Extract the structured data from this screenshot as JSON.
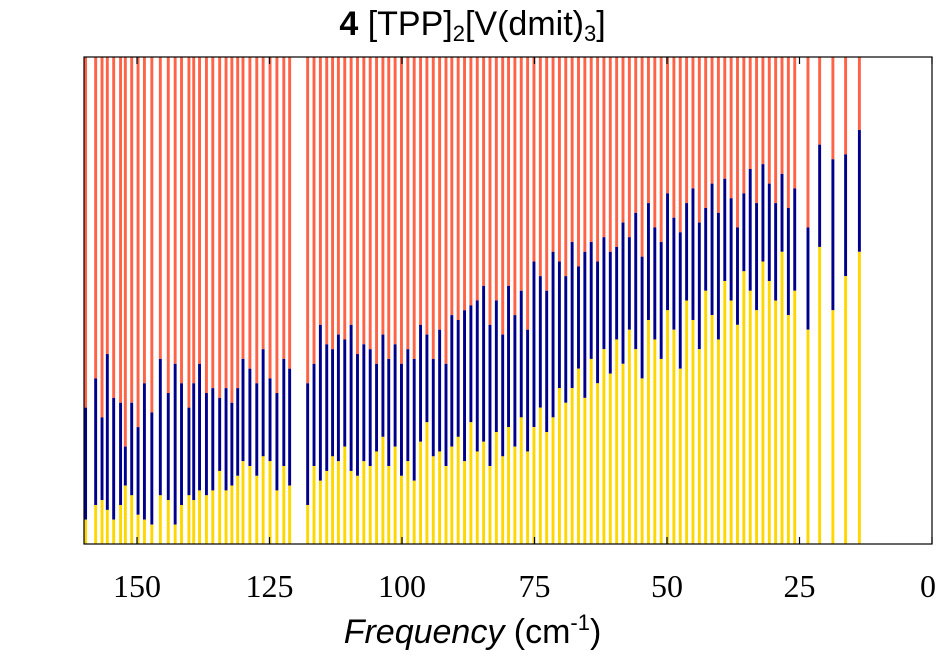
{
  "colors": {
    "red": "#FF6347",
    "blue": "#00008B",
    "yellow": "#FFD700",
    "axis": "#000000"
  },
  "chart_data": {
    "type": "bar",
    "stacked": true,
    "title": {
      "compound_number": "4",
      "formula_part1": "[TPP]",
      "sub1": "2",
      "formula_part2": "[V(dmit)",
      "sub2": "3",
      "formula_part3": "]"
    },
    "xlabel": {
      "name": "Frequency",
      "units_open": " (cm",
      "exponent": "-1",
      "units_close": ")"
    },
    "ylabel": "",
    "xlim": [
      160,
      0
    ],
    "xaxis_reversed": true,
    "ylim": [
      0,
      1
    ],
    "yticks_shown": false,
    "xticks": [
      150,
      125,
      100,
      75,
      50,
      25,
      0
    ],
    "bar_width_cm1": 0.55,
    "series_order": [
      "yellow",
      "blue",
      "red"
    ],
    "bars": [
      {
        "x": 159.7,
        "yellow": 0.05,
        "blue": 0.28
      },
      {
        "x": 157.8,
        "yellow": 0.08,
        "blue": 0.34
      },
      {
        "x": 156.6,
        "yellow": 0.09,
        "blue": 0.26
      },
      {
        "x": 155.6,
        "yellow": 0.07,
        "blue": 0.39
      },
      {
        "x": 154.4,
        "yellow": 0.05,
        "blue": 0.3
      },
      {
        "x": 153.1,
        "yellow": 0.08,
        "blue": 0.29
      },
      {
        "x": 152.2,
        "yellow": 0.12,
        "blue": 0.2
      },
      {
        "x": 151.0,
        "yellow": 0.1,
        "blue": 0.29
      },
      {
        "x": 149.8,
        "yellow": 0.06,
        "blue": 0.24
      },
      {
        "x": 148.6,
        "yellow": 0.05,
        "blue": 0.33
      },
      {
        "x": 147.2,
        "yellow": 0.04,
        "blue": 0.27
      },
      {
        "x": 145.6,
        "yellow": 0.1,
        "blue": 0.38
      },
      {
        "x": 144.1,
        "yellow": 0.09,
        "blue": 0.31
      },
      {
        "x": 142.8,
        "yellow": 0.04,
        "blue": 0.37
      },
      {
        "x": 141.6,
        "yellow": 0.08,
        "blue": 0.33
      },
      {
        "x": 140.2,
        "yellow": 0.1,
        "blue": 0.28
      },
      {
        "x": 139.3,
        "yellow": 0.09,
        "blue": 0.33
      },
      {
        "x": 138.2,
        "yellow": 0.11,
        "blue": 0.37
      },
      {
        "x": 136.9,
        "yellow": 0.1,
        "blue": 0.31
      },
      {
        "x": 135.7,
        "yellow": 0.11,
        "blue": 0.32
      },
      {
        "x": 134.4,
        "yellow": 0.15,
        "blue": 0.3
      },
      {
        "x": 133.2,
        "yellow": 0.11,
        "blue": 0.32
      },
      {
        "x": 132.1,
        "yellow": 0.12,
        "blue": 0.29
      },
      {
        "x": 131.0,
        "yellow": 0.14,
        "blue": 0.32
      },
      {
        "x": 130.0,
        "yellow": 0.17,
        "blue": 0.38
      },
      {
        "x": 128.7,
        "yellow": 0.16,
        "blue": 0.36
      },
      {
        "x": 127.4,
        "yellow": 0.14,
        "blue": 0.33
      },
      {
        "x": 126.2,
        "yellow": 0.18,
        "blue": 0.4
      },
      {
        "x": 124.9,
        "yellow": 0.17,
        "blue": 0.34
      },
      {
        "x": 123.6,
        "yellow": 0.11,
        "blue": 0.31
      },
      {
        "x": 122.3,
        "yellow": 0.16,
        "blue": 0.38
      },
      {
        "x": 121.2,
        "yellow": 0.12,
        "blue": 0.36
      },
      {
        "x": 117.8,
        "yellow": 0.08,
        "blue": 0.33
      },
      {
        "x": 116.6,
        "yellow": 0.16,
        "blue": 0.37
      },
      {
        "x": 115.4,
        "yellow": 0.13,
        "blue": 0.45
      },
      {
        "x": 114.2,
        "yellow": 0.15,
        "blue": 0.41
      },
      {
        "x": 113.1,
        "yellow": 0.18,
        "blue": 0.4
      },
      {
        "x": 112.0,
        "yellow": 0.17,
        "blue": 0.43
      },
      {
        "x": 110.8,
        "yellow": 0.2,
        "blue": 0.42
      },
      {
        "x": 109.6,
        "yellow": 0.15,
        "blue": 0.45
      },
      {
        "x": 108.4,
        "yellow": 0.14,
        "blue": 0.39
      },
      {
        "x": 107.2,
        "yellow": 0.17,
        "blue": 0.41
      },
      {
        "x": 106.0,
        "yellow": 0.16,
        "blue": 0.4
      },
      {
        "x": 104.8,
        "yellow": 0.19,
        "blue": 0.37
      },
      {
        "x": 103.6,
        "yellow": 0.22,
        "blue": 0.43
      },
      {
        "x": 102.5,
        "yellow": 0.16,
        "blue": 0.38
      },
      {
        "x": 101.3,
        "yellow": 0.2,
        "blue": 0.41
      },
      {
        "x": 100.1,
        "yellow": 0.14,
        "blue": 0.37
      },
      {
        "x": 98.9,
        "yellow": 0.17,
        "blue": 0.4
      },
      {
        "x": 97.7,
        "yellow": 0.13,
        "blue": 0.38
      },
      {
        "x": 96.5,
        "yellow": 0.21,
        "blue": 0.45
      },
      {
        "x": 95.3,
        "yellow": 0.25,
        "blue": 0.43
      },
      {
        "x": 94.1,
        "yellow": 0.18,
        "blue": 0.38
      },
      {
        "x": 92.9,
        "yellow": 0.19,
        "blue": 0.44
      },
      {
        "x": 91.7,
        "yellow": 0.16,
        "blue": 0.37
      },
      {
        "x": 90.6,
        "yellow": 0.2,
        "blue": 0.47
      },
      {
        "x": 89.4,
        "yellow": 0.22,
        "blue": 0.46
      },
      {
        "x": 88.2,
        "yellow": 0.17,
        "blue": 0.48
      },
      {
        "x": 87.0,
        "yellow": 0.25,
        "blue": 0.49
      },
      {
        "x": 85.8,
        "yellow": 0.19,
        "blue": 0.5
      },
      {
        "x": 84.6,
        "yellow": 0.21,
        "blue": 0.53
      },
      {
        "x": 83.4,
        "yellow": 0.16,
        "blue": 0.45
      },
      {
        "x": 82.2,
        "yellow": 0.23,
        "blue": 0.5
      },
      {
        "x": 81.0,
        "yellow": 0.18,
        "blue": 0.43
      },
      {
        "x": 79.9,
        "yellow": 0.24,
        "blue": 0.53
      },
      {
        "x": 78.7,
        "yellow": 0.2,
        "blue": 0.47
      },
      {
        "x": 77.5,
        "yellow": 0.26,
        "blue": 0.52
      },
      {
        "x": 76.3,
        "yellow": 0.19,
        "blue": 0.44
      },
      {
        "x": 75.1,
        "yellow": 0.24,
        "blue": 0.58
      },
      {
        "x": 73.9,
        "yellow": 0.28,
        "blue": 0.55
      },
      {
        "x": 72.7,
        "yellow": 0.23,
        "blue": 0.52
      },
      {
        "x": 71.5,
        "yellow": 0.26,
        "blue": 0.6
      },
      {
        "x": 70.3,
        "yellow": 0.32,
        "blue": 0.58
      },
      {
        "x": 69.1,
        "yellow": 0.29,
        "blue": 0.55
      },
      {
        "x": 67.9,
        "yellow": 0.32,
        "blue": 0.62
      },
      {
        "x": 66.7,
        "yellow": 0.36,
        "blue": 0.57
      },
      {
        "x": 65.5,
        "yellow": 0.3,
        "blue": 0.6
      },
      {
        "x": 64.3,
        "yellow": 0.38,
        "blue": 0.62
      },
      {
        "x": 63.1,
        "yellow": 0.33,
        "blue": 0.58
      },
      {
        "x": 61.9,
        "yellow": 0.4,
        "blue": 0.63
      },
      {
        "x": 60.7,
        "yellow": 0.35,
        "blue": 0.6
      },
      {
        "x": 59.5,
        "yellow": 0.42,
        "blue": 0.61
      },
      {
        "x": 58.3,
        "yellow": 0.37,
        "blue": 0.66
      },
      {
        "x": 57.1,
        "yellow": 0.44,
        "blue": 0.63
      },
      {
        "x": 55.9,
        "yellow": 0.4,
        "blue": 0.68
      },
      {
        "x": 54.7,
        "yellow": 0.34,
        "blue": 0.59
      },
      {
        "x": 53.5,
        "yellow": 0.46,
        "blue": 0.7
      },
      {
        "x": 52.3,
        "yellow": 0.42,
        "blue": 0.65
      },
      {
        "x": 51.1,
        "yellow": 0.38,
        "blue": 0.62
      },
      {
        "x": 49.9,
        "yellow": 0.48,
        "blue": 0.72
      },
      {
        "x": 48.7,
        "yellow": 0.44,
        "blue": 0.67
      },
      {
        "x": 47.5,
        "yellow": 0.36,
        "blue": 0.64
      },
      {
        "x": 46.3,
        "yellow": 0.5,
        "blue": 0.7
      },
      {
        "x": 45.1,
        "yellow": 0.46,
        "blue": 0.73
      },
      {
        "x": 43.9,
        "yellow": 0.4,
        "blue": 0.66
      },
      {
        "x": 42.7,
        "yellow": 0.52,
        "blue": 0.69
      },
      {
        "x": 41.5,
        "yellow": 0.47,
        "blue": 0.74
      },
      {
        "x": 40.3,
        "yellow": 0.42,
        "blue": 0.68
      },
      {
        "x": 39.1,
        "yellow": 0.54,
        "blue": 0.75
      },
      {
        "x": 37.9,
        "yellow": 0.5,
        "blue": 0.71
      },
      {
        "x": 36.7,
        "yellow": 0.45,
        "blue": 0.65
      },
      {
        "x": 35.5,
        "yellow": 0.56,
        "blue": 0.72
      },
      {
        "x": 34.3,
        "yellow": 0.52,
        "blue": 0.77
      },
      {
        "x": 33.1,
        "yellow": 0.48,
        "blue": 0.7
      },
      {
        "x": 31.9,
        "yellow": 0.58,
        "blue": 0.78
      },
      {
        "x": 30.7,
        "yellow": 0.54,
        "blue": 0.74
      },
      {
        "x": 29.5,
        "yellow": 0.5,
        "blue": 0.7
      },
      {
        "x": 28.3,
        "yellow": 0.6,
        "blue": 0.76
      },
      {
        "x": 27.1,
        "yellow": 0.47,
        "blue": 0.69
      },
      {
        "x": 25.9,
        "yellow": 0.52,
        "blue": 0.73
      },
      {
        "x": 23.4,
        "yellow": 0.44,
        "blue": 0.65
      },
      {
        "x": 21.2,
        "yellow": 0.61,
        "blue": 0.82
      },
      {
        "x": 18.7,
        "yellow": 0.48,
        "blue": 0.79
      },
      {
        "x": 16.3,
        "yellow": 0.55,
        "blue": 0.8
      },
      {
        "x": 13.7,
        "yellow": 0.6,
        "blue": 0.85
      }
    ]
  }
}
